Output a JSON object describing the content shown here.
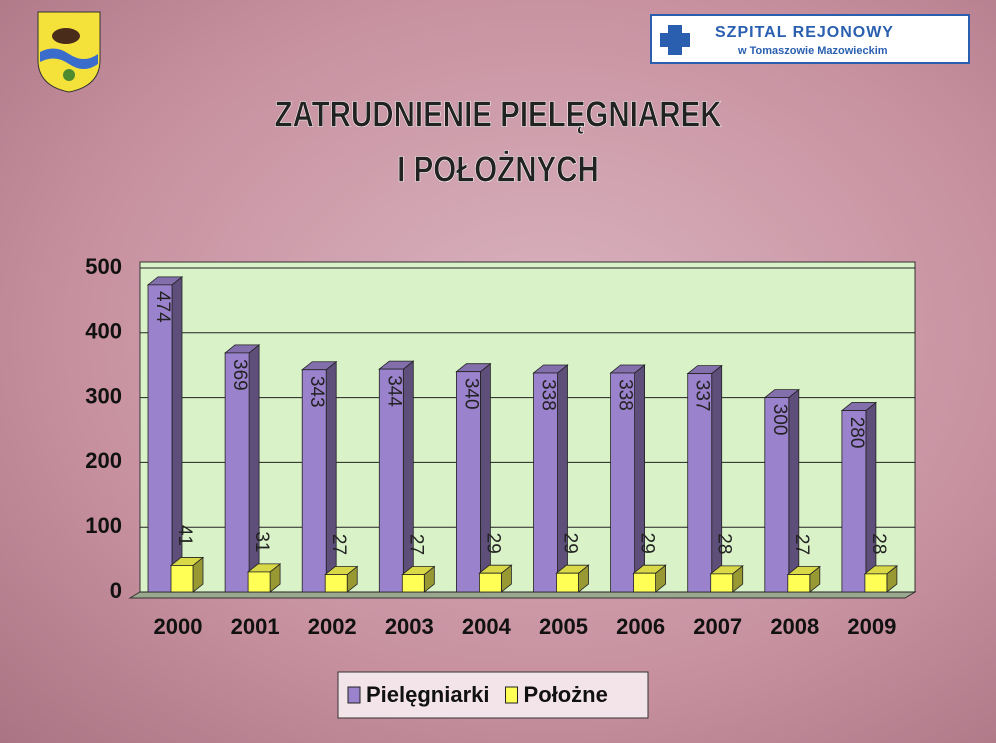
{
  "header": {
    "hospital_name": "SZPITAL REJONOWY",
    "hospital_place": "w Tomaszowie Mazowieckim"
  },
  "chart_data": {
    "type": "bar3d",
    "title": [
      "ZATRUDNIENIE PIELĘGNIAREK",
      "I POŁOŻNYCH"
    ],
    "categories": [
      "2000",
      "2001",
      "2002",
      "2003",
      "2004",
      "2005",
      "2006",
      "2007",
      "2008",
      "2009"
    ],
    "series": [
      {
        "name": "Pielęgniarki",
        "color": "#9b82cc",
        "values": [
          474,
          369,
          343,
          344,
          340,
          338,
          338,
          337,
          300,
          280
        ]
      },
      {
        "name": "Położne",
        "color": "#ffff55",
        "values": [
          41,
          31,
          27,
          27,
          29,
          29,
          29,
          28,
          27,
          28
        ]
      }
    ],
    "ylim": [
      0,
      500
    ],
    "yticks": [
      0,
      100,
      200,
      300,
      400,
      500
    ],
    "grid": true,
    "legend": "bottom"
  }
}
